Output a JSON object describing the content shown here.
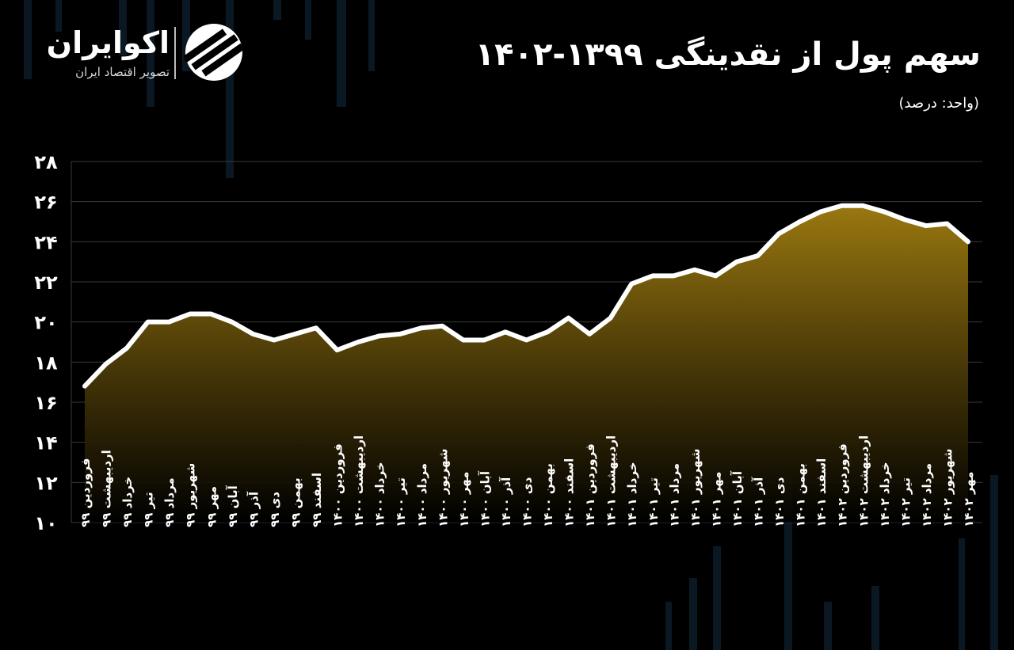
{
  "brand": {
    "name": "اکوایران",
    "tagline": "تصویر اقتصاد ایران",
    "icon": "ecoiran-logo-icon"
  },
  "title": "سهم پول از نقدینگی ۱۳۹۹-۱۴۰۲",
  "unit_note": "(واحد: درصد)",
  "colors": {
    "line": "#ffffff",
    "fill_top": "#9a7810",
    "fill_bottom": "#000000",
    "grid": "#3a3a3a",
    "background": "#000000"
  },
  "chart_data": {
    "type": "area",
    "title": "سهم پول از نقدینگی ۱۳۹۹-۱۴۰۲",
    "ylabel": "(واحد: درصد)",
    "ylim": [
      10,
      28
    ],
    "yticks": [
      10,
      12,
      14,
      16,
      18,
      20,
      22,
      24,
      26,
      28
    ],
    "ytick_labels": [
      "۱۰",
      "۱۲",
      "۱۴",
      "۱۶",
      "۱۸",
      "۲۰",
      "۲۲",
      "۲۴",
      "۲۶",
      "۲۸"
    ],
    "grid": true,
    "categories": [
      "فروردین ۹۹",
      "اردیبهشت ۹۹",
      "خرداد ۹۹",
      "تیر ۹۹",
      "مرداد ۹۹",
      "شهریور ۹۹",
      "مهر ۹۹",
      "آبان ۹۹",
      "آذر ۹۹",
      "دی ۹۹",
      "بهمن ۹۹",
      "اسفند ۹۹",
      "فروردین ۱۴۰۰",
      "اردیبهشت ۱۴۰۰",
      "خرداد ۱۴۰۰",
      "تیر ۱۴۰۰",
      "مرداد ۱۴۰۰",
      "شهریور ۱۴۰۰",
      "مهر ۱۴۰۰",
      "آبان ۱۴۰۰",
      "آذر ۱۴۰۰",
      "دی ۱۴۰۰",
      "بهمن ۱۴۰۰",
      "اسفند ۱۴۰۰",
      "فروردین ۱۴۰۱",
      "اردیبهشت ۱۴۰۱",
      "خرداد ۱۴۰۱",
      "تیر ۱۴۰۱",
      "مرداد ۱۴۰۱",
      "شهریور ۱۴۰۱",
      "مهر ۱۴۰۱",
      "آبان ۱۴۰۱",
      "آذر ۱۴۰۱",
      "دی ۱۴۰۱",
      "بهمن ۱۴۰۱",
      "اسفند ۱۴۰۱",
      "فروردین ۱۴۰۲",
      "اردیبهشت ۱۴۰۲",
      "خرداد ۱۴۰۲",
      "تیر ۱۴۰۲",
      "مرداد ۱۴۰۲",
      "شهریور ۱۴۰۲",
      "مهر ۱۴۰۲"
    ],
    "values": [
      16.8,
      17.9,
      18.7,
      20.0,
      20.0,
      20.4,
      20.4,
      20.0,
      19.4,
      19.1,
      19.4,
      19.7,
      18.6,
      19.0,
      19.3,
      19.4,
      19.7,
      19.8,
      19.1,
      19.1,
      19.5,
      19.1,
      19.5,
      20.2,
      19.4,
      20.2,
      21.9,
      22.3,
      22.3,
      22.6,
      22.3,
      23.0,
      23.3,
      24.4,
      25.0,
      25.5,
      25.8,
      25.8,
      25.5,
      25.1,
      24.8,
      24.9,
      24.0
    ]
  }
}
